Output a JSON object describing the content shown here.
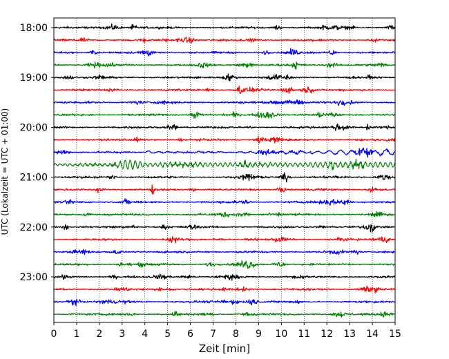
{
  "chart_data": {
    "type": "line",
    "title": "",
    "xlabel": "Zeit  [min]",
    "ylabel": "UTC (Lokalzeit = UTC + 01:00)",
    "xlim": [
      0,
      15
    ],
    "x_ticks": [
      "0",
      "1",
      "2",
      "3",
      "4",
      "5",
      "6",
      "7",
      "8",
      "9",
      "10",
      "11",
      "12",
      "13",
      "14",
      "15"
    ],
    "y_ticks": [
      "18:00",
      "19:00",
      "20:00",
      "21:00",
      "22:00",
      "23:00"
    ],
    "grid": "vertical dotted at each minute",
    "trace_colors": [
      "#000000",
      "#ff0000",
      "#0000ff",
      "#008000"
    ],
    "traces": [
      {
        "start": "18:00",
        "color": "#000000",
        "amplitude": 0.6
      },
      {
        "start": "18:15",
        "color": "#ff0000",
        "amplitude": 0.6
      },
      {
        "start": "18:30",
        "color": "#0000ff",
        "amplitude": 0.6
      },
      {
        "start": "18:45",
        "color": "#008000",
        "amplitude": 0.6
      },
      {
        "start": "19:00",
        "color": "#000000",
        "amplitude": 0.6
      },
      {
        "start": "19:15",
        "color": "#ff0000",
        "amplitude": 0.6
      },
      {
        "start": "19:30",
        "color": "#0000ff",
        "amplitude": 0.6
      },
      {
        "start": "19:45",
        "color": "#008000",
        "amplitude": 0.6
      },
      {
        "start": "20:00",
        "color": "#000000",
        "amplitude": 0.6
      },
      {
        "start": "20:15",
        "color": "#ff0000",
        "amplitude": 0.6
      },
      {
        "start": "20:30",
        "color": "#0000ff",
        "amplitude": 0.6,
        "event": "teleseismic surface waves from 4 min, strongest at 11.5-15 min"
      },
      {
        "start": "20:45",
        "color": "#008000",
        "amplitude": 0.6,
        "event": "large oscillations, peak at 3-4 min"
      },
      {
        "start": "21:00",
        "color": "#000000",
        "amplitude": 0.6
      },
      {
        "start": "21:15",
        "color": "#ff0000",
        "amplitude": 0.6
      },
      {
        "start": "21:30",
        "color": "#0000ff",
        "amplitude": 0.6
      },
      {
        "start": "21:45",
        "color": "#008000",
        "amplitude": 0.6
      },
      {
        "start": "22:00",
        "color": "#000000",
        "amplitude": 0.6
      },
      {
        "start": "22:15",
        "color": "#ff0000",
        "amplitude": 0.6
      },
      {
        "start": "22:30",
        "color": "#0000ff",
        "amplitude": 0.6
      },
      {
        "start": "22:45",
        "color": "#008000",
        "amplitude": 0.6
      },
      {
        "start": "23:00",
        "color": "#000000",
        "amplitude": 0.6
      },
      {
        "start": "23:15",
        "color": "#ff0000",
        "amplitude": 0.6
      },
      {
        "start": "23:30",
        "color": "#0000ff",
        "amplitude": 0.6
      },
      {
        "start": "23:45",
        "color": "#008000",
        "amplitude": 0.6
      }
    ]
  }
}
